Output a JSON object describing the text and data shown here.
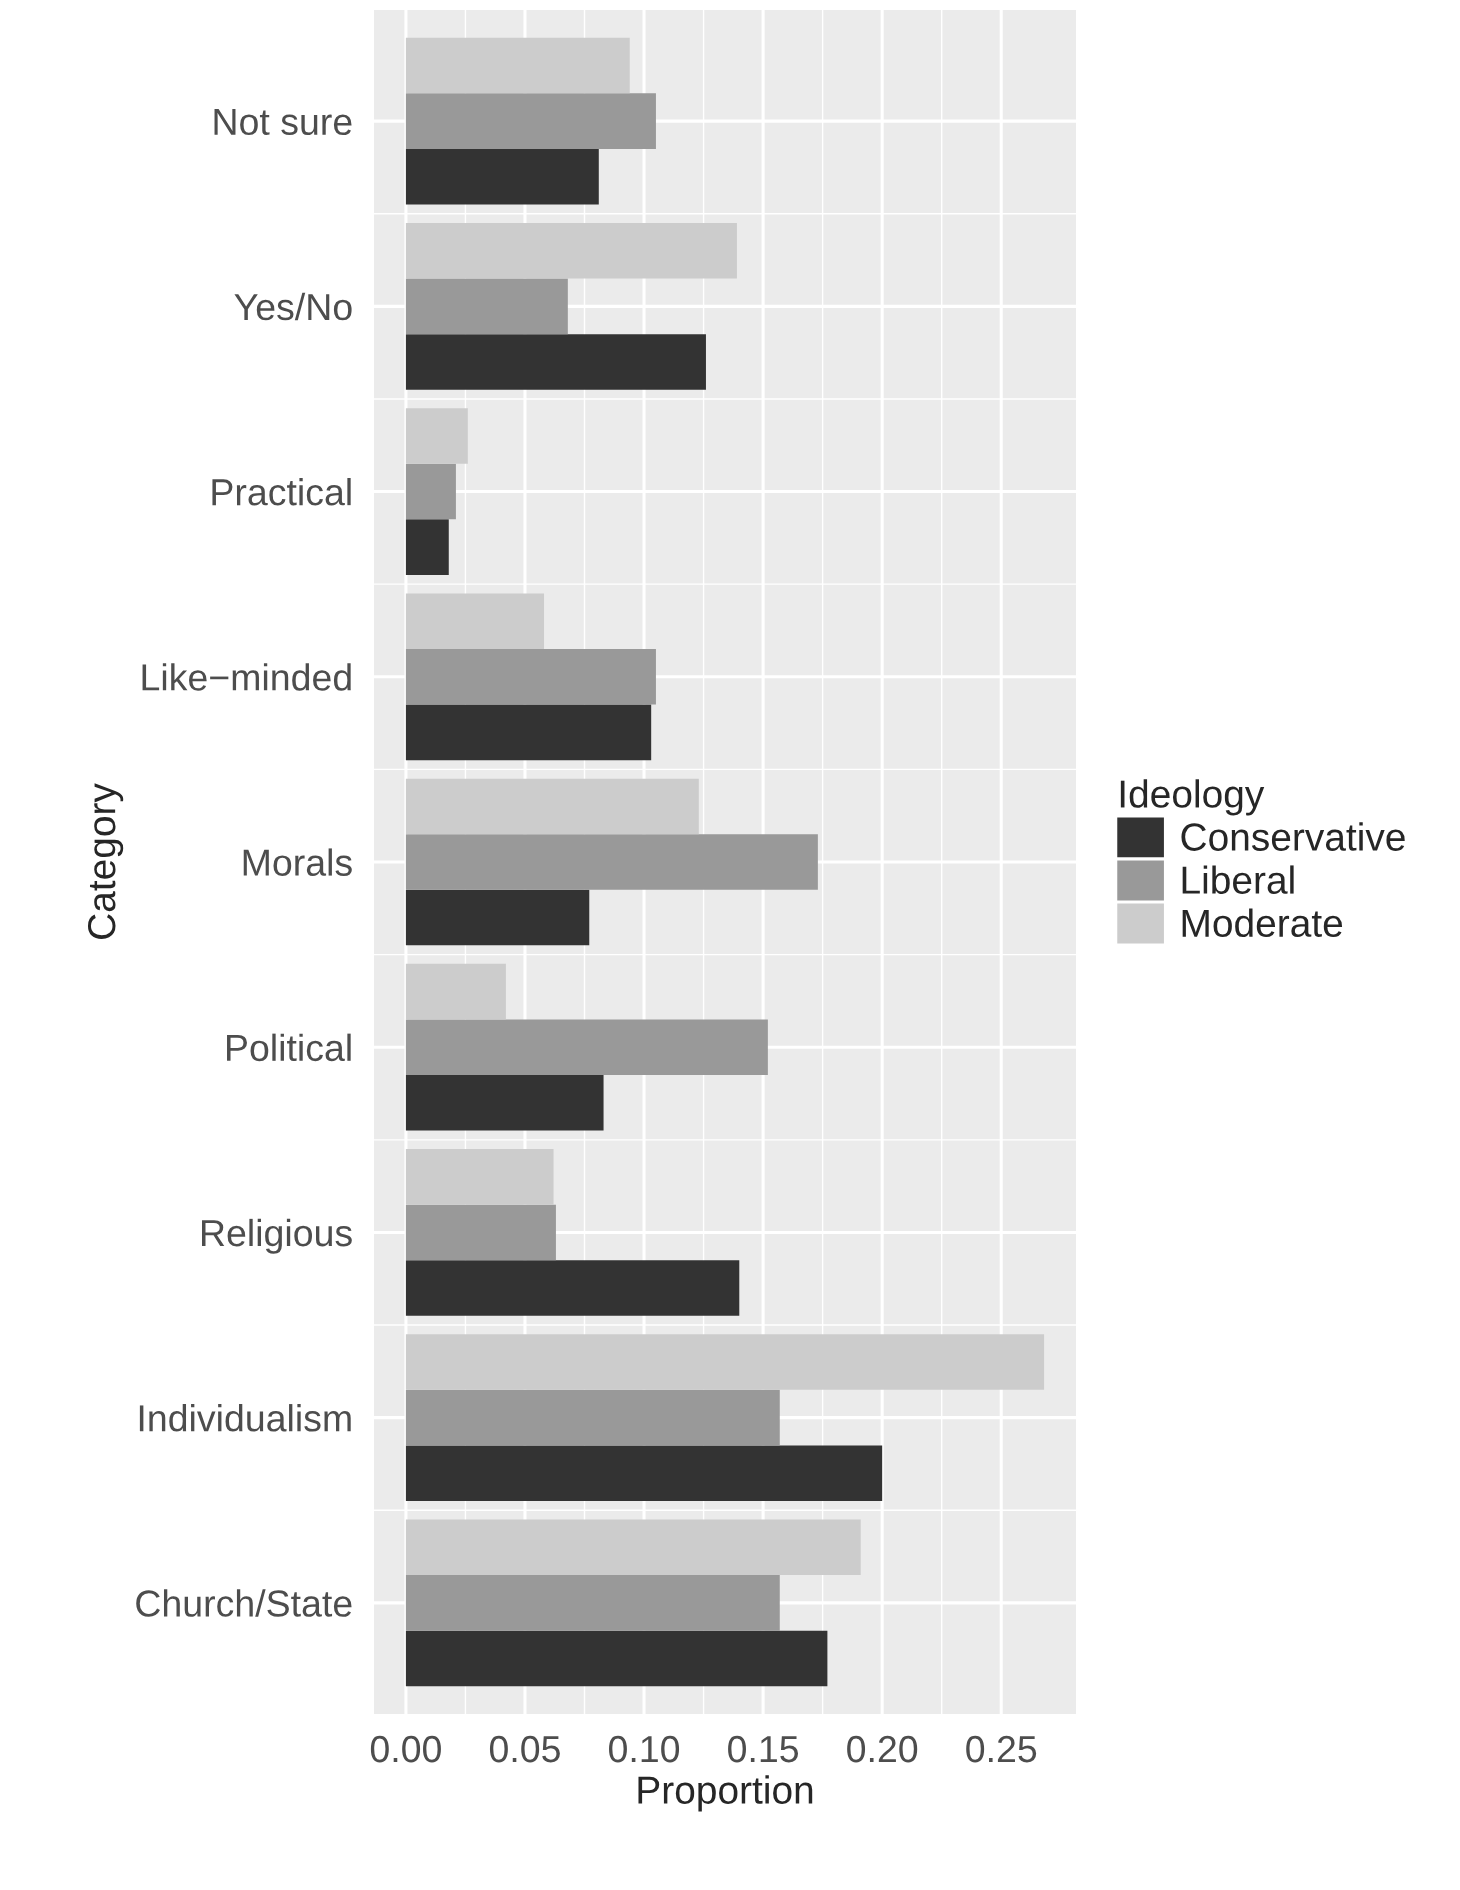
{
  "chart_data": {
    "type": "bar",
    "orientation": "horizontal",
    "xlabel": "Proportion",
    "ylabel": "Category",
    "legend_title": "Ideology",
    "legend": "right",
    "grid": true,
    "categories": [
      "Not sure",
      "Yes/No",
      "Practical",
      "Like−minded",
      "Morals",
      "Political",
      "Religious",
      "Individualism",
      "Church/State"
    ],
    "series": [
      {
        "name": "Conservative",
        "color": "#333333",
        "values": [
          0.081,
          0.126,
          0.018,
          0.103,
          0.077,
          0.083,
          0.14,
          0.2,
          0.177
        ]
      },
      {
        "name": "Liberal",
        "color": "#999999",
        "values": [
          0.105,
          0.068,
          0.021,
          0.105,
          0.173,
          0.152,
          0.063,
          0.157,
          0.157
        ]
      },
      {
        "name": "Moderate",
        "color": "#cccccc",
        "values": [
          0.094,
          0.139,
          0.026,
          0.058,
          0.123,
          0.042,
          0.062,
          0.268,
          0.191
        ]
      }
    ],
    "xlim": [
      -0.0134,
      0.2814
    ],
    "xticks": [
      {
        "value": 0,
        "label": "0.00"
      },
      {
        "value": 0.05,
        "label": "0.05"
      },
      {
        "value": 0.1,
        "label": "0.10"
      },
      {
        "value": 0.15,
        "label": "0.15"
      },
      {
        "value": 0.2,
        "label": "0.20"
      },
      {
        "value": 0.25,
        "label": "0.25"
      }
    ]
  }
}
